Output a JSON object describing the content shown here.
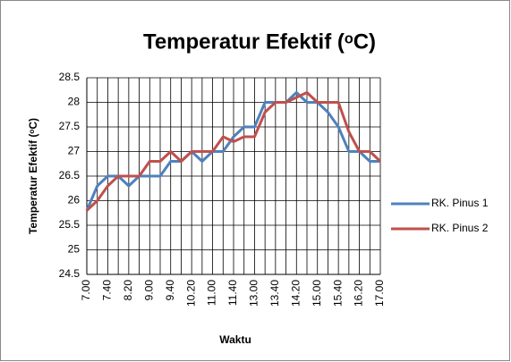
{
  "chart_data": {
    "type": "line",
    "title": "Temperatur Efektif (ᵒC)",
    "x_label": "Waktu",
    "y_label": "Temperatur Efektif (ᵒC)",
    "categories": [
      "7.00",
      null,
      "7.40",
      null,
      "8.20",
      null,
      "9.00",
      null,
      "9.40",
      null,
      "10.20",
      null,
      "11.00",
      null,
      "11.40",
      null,
      "13.00",
      null,
      "13.40",
      null,
      "14.20",
      null,
      "15.00",
      null,
      "15.40",
      null,
      "16.20",
      null,
      "17.00"
    ],
    "series": [
      {
        "name": "RK. Pinus 1",
        "color": "#4f81bd",
        "values": [
          25.8,
          26.3,
          26.5,
          26.5,
          26.3,
          26.5,
          26.5,
          26.5,
          26.8,
          26.8,
          27,
          26.8,
          27,
          27,
          27.3,
          27.5,
          27.5,
          28,
          28,
          28,
          28.2,
          28,
          28,
          27.8,
          27.5,
          27,
          27,
          26.8,
          26.8
        ]
      },
      {
        "name": "RK. Pinus 2",
        "color": "#c0504d",
        "values": [
          25.8,
          26,
          26.3,
          26.5,
          26.5,
          26.5,
          26.8,
          26.8,
          27,
          26.8,
          27,
          27,
          27,
          27.3,
          27.2,
          27.3,
          27.3,
          27.8,
          28,
          28,
          28.1,
          28.2,
          28,
          28,
          28,
          27.4,
          27,
          27,
          26.8
        ]
      }
    ],
    "ylim": [
      24.5,
      28.5
    ],
    "yticks": [
      24.5,
      25,
      25.5,
      26,
      26.5,
      27,
      27.5,
      28,
      28.5
    ],
    "grid": true,
    "legend": "right"
  }
}
